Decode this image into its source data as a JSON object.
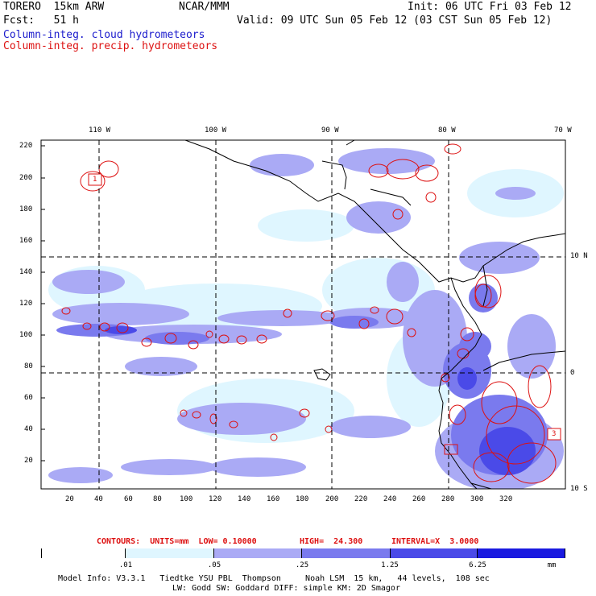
{
  "header": {
    "model": "TORERO  15km ARW",
    "org": "NCAR/MMM",
    "init": "Init: 06 UTC Fri 03 Feb 12",
    "fcst": "Fcst:   51 h",
    "valid": "Valid: 09 UTC Sun 05 Feb 12 (03 CST Sun 05 Feb 12)",
    "cloud_label": "Column-integ. cloud hydrometeors",
    "precip_label": "Column-integ. precip. hydrometeors"
  },
  "map": {
    "top_lon_labels": [
      "110 W",
      "100 W",
      "90 W",
      "80 W",
      "70 W"
    ],
    "right_lat_labels": [
      "10 N",
      "0",
      "10 S"
    ],
    "left_ticks": [
      "220",
      "200",
      "180",
      "160",
      "140",
      "120",
      "100",
      "80",
      "60",
      "40",
      "20"
    ],
    "bottom_ticks": [
      "20",
      "40",
      "60",
      "80",
      "100",
      "120",
      "140",
      "160",
      "180",
      "200",
      "220",
      "240",
      "260",
      "280",
      "300",
      "320"
    ],
    "contour_box_labels": [
      "1",
      "3"
    ]
  },
  "contour_info": {
    "contours": "CONTOURS:  UNITS=mm  LOW= 0.10000",
    "high": "HIGH=  24.300",
    "interval": "INTERVAL=X  3.0000"
  },
  "colorbar": {
    "labels": [
      ".01",
      ".05",
      ".25",
      "1.25",
      "6.25"
    ],
    "units": "mm",
    "colors": [
      "#ffffff",
      "#dff6ff",
      "#aaaaf5",
      "#7a7aee",
      "#4a4ae8",
      "#1a1ae0"
    ]
  },
  "footer": {
    "line1": "Model Info: V3.3.1   Tiedtke YSU PBL  Thompson     Noah LSM  15 km,   44 levels,  108 sec",
    "line2": "LW: Godd SW: Goddard DIFF: simple KM: 2D Smagor"
  }
}
